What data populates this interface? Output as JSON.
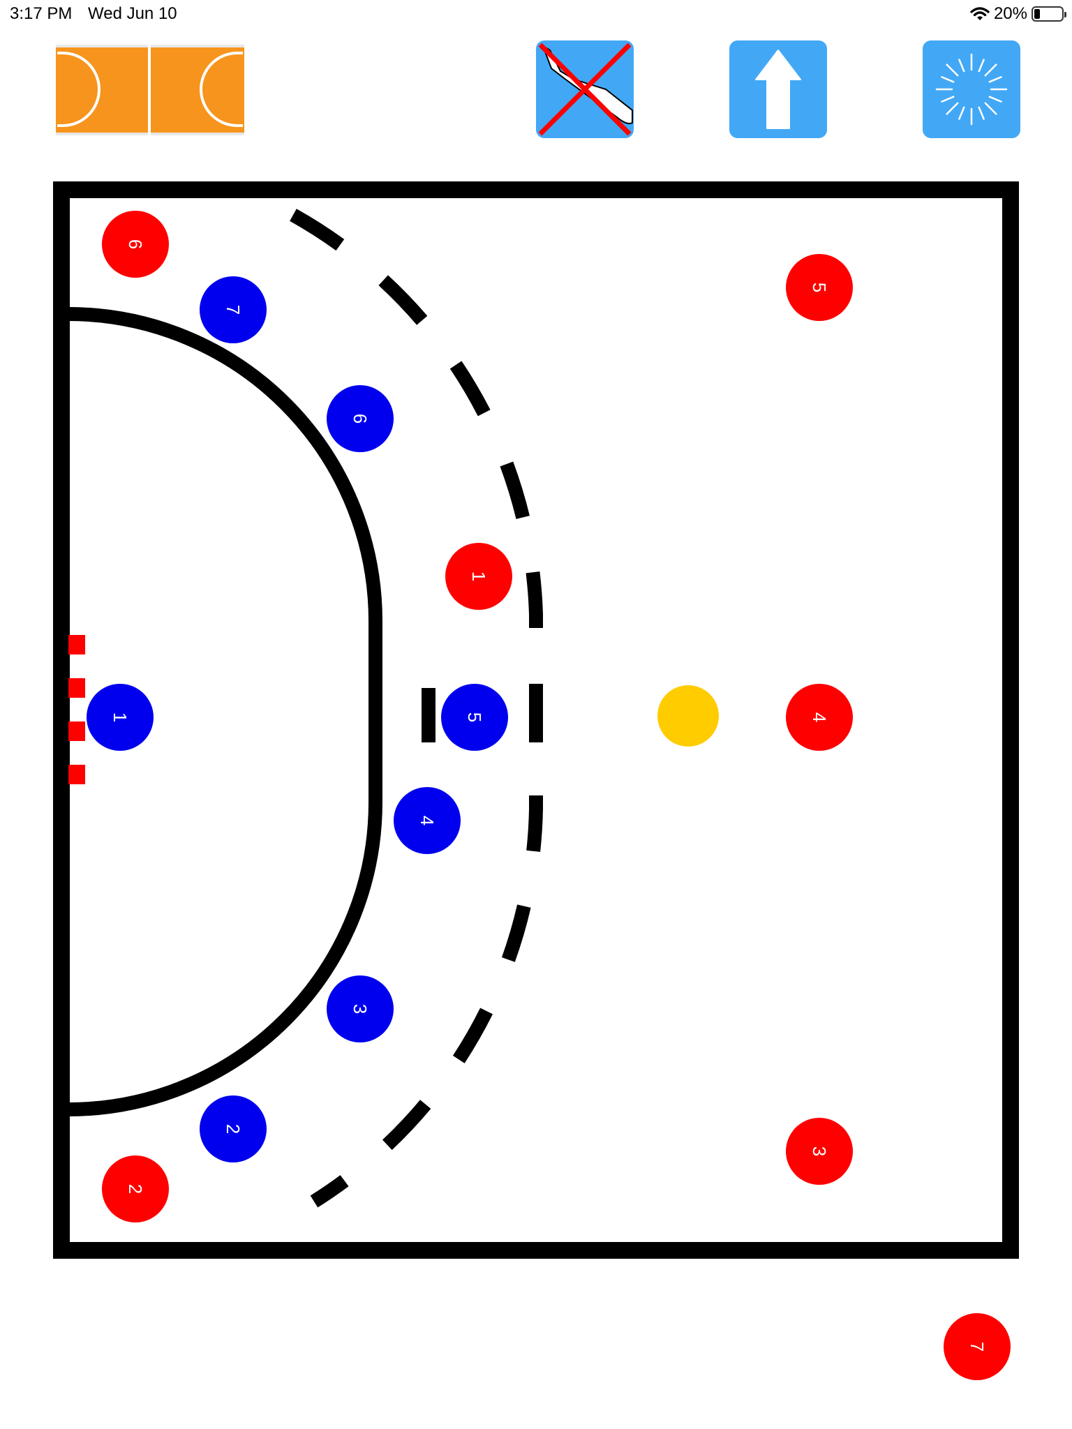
{
  "status_bar": {
    "time": "3:17 PM",
    "date": "Wed Jun 10",
    "battery_text": "20%",
    "battery_level": 0.2
  },
  "toolbar": {
    "court_icon": "handball-court-icon",
    "draw_icon": "drawing-disabled-icon",
    "arrow_icon": "up-arrow-icon",
    "spinner_icon": "loading-spinner-icon"
  },
  "colors": {
    "court_orange": "#f7941d",
    "button_blue": "#42a8f5",
    "team_red": "#ff0000",
    "team_blue": "#0000ee",
    "ball_yellow": "#ffcc00"
  },
  "players": {
    "red": [
      "6",
      "5",
      "1",
      "4",
      "3",
      "2",
      "7"
    ],
    "blue": [
      "7",
      "6",
      "1",
      "5",
      "4",
      "3",
      "2"
    ]
  }
}
